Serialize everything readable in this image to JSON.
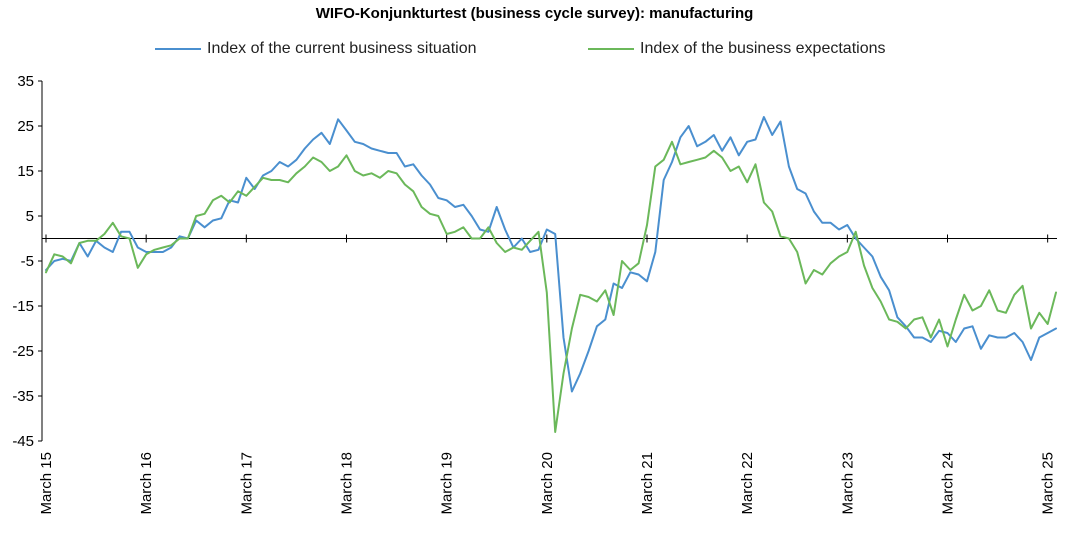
{
  "chart_data": {
    "type": "line",
    "title": "WIFO-Konjunkturtest (business cycle survey): manufacturing",
    "xlabel": "",
    "ylabel": "",
    "ylim": [
      -45,
      35
    ],
    "y_ticks": [
      "35",
      "25",
      "15",
      "5",
      "-5",
      "-15",
      "-25",
      "-35",
      "-45"
    ],
    "x_ticks": [
      "March 15",
      "March 16",
      "March 17",
      "March 18",
      "March 19",
      "March 20",
      "March 21",
      "March 22",
      "March 23",
      "March 24",
      "March 25"
    ],
    "x_period": "monthly, March 2015 – March 2025",
    "legend_position": "top",
    "grid": false,
    "series": [
      {
        "name": "Index of the current business situation",
        "color": "#4a8fcf",
        "values": [
          -7.0,
          -5.0,
          -4.5,
          -5.0,
          -1.0,
          -4.0,
          -0.5,
          -2.0,
          -3.0,
          1.5,
          1.5,
          -2.0,
          -3.0,
          -3.0,
          -3.0,
          -2.0,
          0.5,
          0.0,
          4.0,
          2.5,
          4.0,
          4.5,
          8.5,
          8.0,
          13.5,
          11.0,
          14.0,
          15.0,
          17.0,
          16.0,
          17.5,
          20.0,
          22.0,
          23.5,
          21.0,
          26.5,
          24.0,
          21.5,
          21.0,
          20.0,
          19.5,
          19.0,
          19.0,
          16.0,
          16.5,
          14.0,
          12.0,
          9.0,
          8.5,
          7.0,
          7.5,
          5.0,
          2.0,
          1.5,
          7.0,
          2.0,
          -2.0,
          0.0,
          -3.0,
          -2.5,
          2.0,
          1.0,
          -22.0,
          -34.0,
          -30.0,
          -25.0,
          -19.5,
          -18.0,
          -10.0,
          -11.0,
          -7.5,
          -8.0,
          -9.5,
          -3.0,
          13.0,
          17.0,
          22.5,
          25.0,
          20.5,
          21.5,
          23.0,
          19.5,
          22.5,
          18.5,
          21.5,
          22.0,
          27.0,
          23.0,
          26.0,
          16.0,
          11.0,
          10.0,
          6.0,
          3.5,
          3.5,
          2.0,
          3.0,
          0.0,
          -2.0,
          -4.0,
          -8.5,
          -11.5,
          -17.5,
          -19.5,
          -22.0,
          -22.0,
          -23.0,
          -20.5,
          -21.0,
          -23.0,
          -20.0,
          -19.5,
          -24.5,
          -21.5,
          -22.0,
          -22.0,
          -21.0,
          -23.0,
          -27.0,
          -22.0,
          -21.0,
          -20.0
        ]
      },
      {
        "name": "Index of the business expectations",
        "color": "#6bb85a",
        "values": [
          -7.5,
          -3.5,
          -4.0,
          -5.5,
          -1.0,
          -0.5,
          -0.5,
          1.0,
          3.5,
          0.5,
          0.0,
          -6.5,
          -3.5,
          -2.5,
          -2.0,
          -1.5,
          0.0,
          0.0,
          5.0,
          5.5,
          8.5,
          9.5,
          8.0,
          10.5,
          9.5,
          11.5,
          13.5,
          13.0,
          13.0,
          12.5,
          14.5,
          16.0,
          18.0,
          17.0,
          15.0,
          16.0,
          18.5,
          15.0,
          14.0,
          14.5,
          13.5,
          15.0,
          14.5,
          12.0,
          10.5,
          7.0,
          5.5,
          5.0,
          1.0,
          1.5,
          2.5,
          0.0,
          0.0,
          2.5,
          -1.0,
          -3.0,
          -2.0,
          -2.5,
          -0.5,
          1.5,
          -12.0,
          -43.0,
          -30.0,
          -20.0,
          -12.5,
          -13.0,
          -14.0,
          -11.5,
          -17.0,
          -5.0,
          -7.0,
          -5.5,
          3.0,
          16.0,
          17.5,
          21.5,
          16.5,
          17.0,
          17.5,
          18.0,
          19.5,
          18.0,
          15.0,
          16.0,
          12.5,
          16.5,
          8.0,
          6.0,
          0.5,
          0.0,
          -3.0,
          -10.0,
          -7.0,
          -8.0,
          -5.5,
          -4.0,
          -3.0,
          1.5,
          -6.0,
          -11.0,
          -14.0,
          -18.0,
          -18.5,
          -20.0,
          -18.0,
          -17.5,
          -22.0,
          -18.0,
          -24.0,
          -18.0,
          -12.5,
          -16.0,
          -15.0,
          -11.5,
          -16.0,
          -16.5,
          -12.5,
          -10.5,
          -20.0,
          -16.5,
          -19.0,
          -12.0
        ]
      }
    ]
  }
}
